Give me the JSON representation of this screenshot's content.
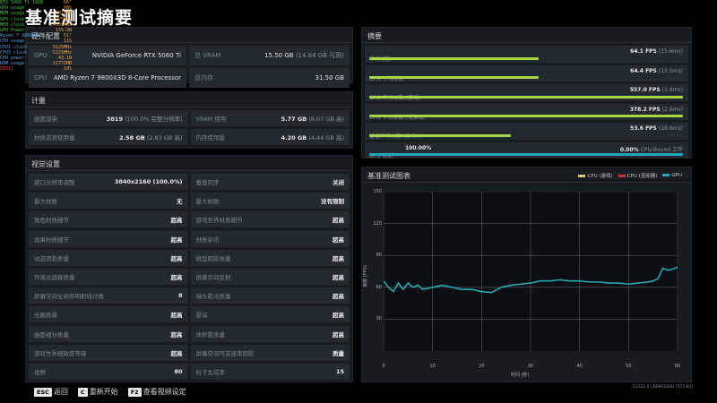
{
  "page_title": "基准测试摘要",
  "osd": [
    {
      "k": "RTX 5060 Ti 16GB",
      "v": "66°",
      "c": "g"
    },
    {
      "k": "GPU usage",
      "v": "98%",
      "c": "g"
    },
    {
      "k": "MEM usage",
      "v": "6071MB",
      "c": "g"
    },
    {
      "k": "GPU clock",
      "v": "2775MHz",
      "c": "g"
    },
    {
      "k": "MEM clock",
      "v": "14001MHz",
      "c": "g"
    },
    {
      "k": "GPU Power",
      "v": "159.9W",
      "c": "g"
    },
    {
      "k": "Ryzen 7 9800X3D",
      "v": "51°",
      "c": "b"
    },
    {
      "k": "CPU usage",
      "v": "11%",
      "c": "b"
    },
    {
      "k": "CPU1 clock",
      "v": "5225MHz",
      "c": "b"
    },
    {
      "k": "CPU3 clock",
      "v": "5225MHz",
      "c": "b"
    },
    {
      "k": "CPU power",
      "v": "43.1W",
      "c": "b"
    },
    {
      "k": "RAM usage",
      "v": "11772MB",
      "c": "b"
    },
    {
      "k": "D3D12",
      "v": "105",
      "c": "r"
    }
  ],
  "hardware": {
    "title": "硬件配置",
    "rows": [
      {
        "label": "GPU",
        "value": "NVIDIA GeForce RTX 5060 Ti",
        "label2": "总 VRAM",
        "value2": "15.50 GB",
        "sub2": "(14.84 GB 可用)"
      },
      {
        "label": "CPU",
        "value": "AMD Ryzen 7 9800X3D 8-Core Processor",
        "label2": "总内存",
        "value2": "31.50 GB",
        "sub2": ""
      }
    ]
  },
  "metrics": {
    "title": "计量",
    "rows": [
      {
        "label": "画面渲染",
        "value": "3819",
        "sub": "(100.0% 完整分辨率)",
        "label2": "VRAM 使用",
        "value2": "5.77 GB",
        "sub2": "(6.07 GB 高)"
      },
      {
        "label": "材质资源使用量",
        "value": "2.58 GB",
        "sub": "(2.83 GB 高)",
        "label2": "内存使用量",
        "value2": "4.20 GB",
        "sub2": "(4.44 GB 高)"
      }
    ]
  },
  "visual": {
    "title": "视觉设置",
    "rows": [
      {
        "l": "窗口分辨率调整",
        "v": "3840x2160 (100.0%)",
        "l2": "垂直同步",
        "v2": "关闭"
      },
      {
        "l": "最大帧数",
        "v": "无",
        "l2": "最大帧数",
        "v2": "没有限制"
      },
      {
        "l": "角色材质细节",
        "v": "超高",
        "l2": "游戏世界材质细节",
        "v2": "超高"
      },
      {
        "l": "效果材质细节",
        "v": "超高",
        "l2": "材质杂讯",
        "v2": "超高"
      },
      {
        "l": "动态阴影质量",
        "v": "超高",
        "l2": "微型阴影质量",
        "v2": "超高"
      },
      {
        "l": "环境光遮蔽质量",
        "v": "超高",
        "l2": "屏幕空间反射",
        "v2": "超高"
      },
      {
        "l": "屏幕空间全局照明射线计数",
        "v": "8",
        "l2": "镜头眩光质量",
        "v2": "超高"
      },
      {
        "l": "光圈质量",
        "v": "超高",
        "l2": "景深",
        "v2": "超高"
      },
      {
        "l": "曲面细分质量",
        "v": "超高",
        "l2": "体积雾质量",
        "v2": "超高"
      },
      {
        "l": "游戏世界细致度等级",
        "v": "超高",
        "l2": "屏幕空间可变速率阴影",
        "v2": "质量"
      },
      {
        "l": "视野",
        "v": "80",
        "l2": "粒子生成率",
        "v2": "15"
      }
    ]
  },
  "summary": {
    "title": "摘要",
    "rows": [
      {
        "label": "平均帧数",
        "value": "64.1 FPS",
        "sub": "(15.6ms)",
        "bar": 0.54,
        "color": "green"
      },
      {
        "label": "GPU 平均帧数",
        "value": "64.4 FPS",
        "sub": "(15.5ms)",
        "bar": 0.54,
        "color": "green"
      },
      {
        "label": "GPU 平均帧数 (游戏)",
        "value": "557.0 FPS",
        "sub": "(1.8ms)",
        "bar": 1.0,
        "color": "green"
      },
      {
        "label": "GPU 平均帧数 (渲染器)",
        "value": "378.2 FPS",
        "sub": "(2.6ms)",
        "bar": 1.0,
        "color": "green"
      },
      {
        "label": "最低平均帧数 (后 5%)",
        "value": "53.6 FPS",
        "sub": "(18.6ms)",
        "bar": 0.45,
        "color": "green"
      },
      {
        "label": "GPU 限制",
        "value": "0.00%",
        "sub": "CPU-Bound 工作",
        "extra": "100.00%",
        "bar": 1.0,
        "color": "cyan"
      }
    ]
  },
  "chart_data": {
    "type": "line",
    "title": "基准测试图表",
    "xlabel": "时间 (秒)",
    "ylabel": "帧数 (FPS)",
    "xlim": [
      0,
      60
    ],
    "ylim": [
      0,
      150
    ],
    "x_ticks": [
      "0",
      "10",
      "20",
      "30",
      "40",
      "50",
      "60"
    ],
    "y_ticks": [
      "30",
      "60",
      "90",
      "120",
      "150"
    ],
    "legend": [
      {
        "name": "CPU (游戏)",
        "color": "#e8c46a"
      },
      {
        "name": "CPU (渲染器)",
        "color": "#c8323c"
      },
      {
        "name": "GPU",
        "color": "#2aa6b4"
      }
    ],
    "series": [
      {
        "name": "CPU (游戏)",
        "values": []
      },
      {
        "name": "CPU (渲染器)",
        "x": [
          0,
          60
        ],
        "values": [
          150,
          150
        ]
      },
      {
        "name": "GPU",
        "x": [
          0,
          1,
          2,
          3,
          4,
          5,
          6,
          7,
          8,
          10,
          12,
          14,
          16,
          18,
          20,
          22,
          24,
          26,
          28,
          30,
          32,
          34,
          36,
          38,
          40,
          42,
          44,
          46,
          48,
          50,
          52,
          54,
          55,
          56,
          57,
          58,
          59,
          60
        ],
        "values": [
          66,
          60,
          56,
          64,
          58,
          64,
          60,
          62,
          58,
          60,
          62,
          60,
          58,
          58,
          56,
          55,
          60,
          62,
          63,
          64,
          66,
          66,
          67,
          66,
          66,
          65,
          65,
          64,
          64,
          63,
          64,
          65,
          66,
          68,
          78,
          76,
          77,
          79
        ]
      }
    ]
  },
  "footer": [
    {
      "key": "ESC",
      "label": "返回"
    },
    {
      "key": "C",
      "label": "重新开始"
    },
    {
      "key": "F2",
      "label": "查看视频设定"
    }
  ],
  "version": "11122.0 (30993560) [575.94]"
}
